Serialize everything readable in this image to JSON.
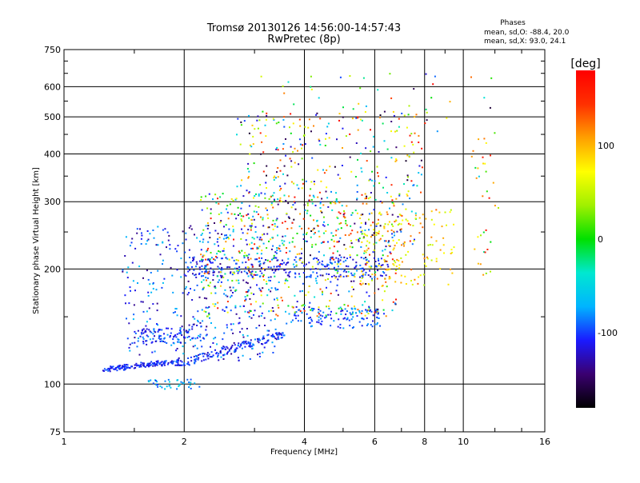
{
  "chart_data": {
    "type": "scatter",
    "title": "Tromsø 20130126 14:56:00-14:57:43",
    "subtitle": "RwPretec (8p)",
    "xlabel": "Frequency [MHz]",
    "ylabel": "Stationary phase Virtual Height [km]",
    "x_scale": "log",
    "y_scale": "log",
    "xlim": [
      1,
      16
    ],
    "ylim": [
      75,
      750
    ],
    "x_ticks": [
      1,
      2,
      4,
      6,
      8,
      10,
      16
    ],
    "y_ticks": [
      75,
      100,
      200,
      300,
      400,
      500,
      600,
      750
    ],
    "x_tick_labels": [
      "1",
      "2",
      "4",
      "6",
      "8",
      "10",
      "16"
    ],
    "y_tick_labels": [
      "75",
      "100",
      "200",
      "300",
      "400",
      "500",
      "600",
      "750"
    ],
    "grid": true,
    "stats": {
      "header": "Phases",
      "o_line": "mean, sd,O: -88.4, 20.0",
      "x_line": "mean, sd,X:  93.0, 24.1"
    },
    "colorbar": {
      "label": "[deg]",
      "range": [
        -180,
        180
      ],
      "ticks": [
        100,
        0,
        -100
      ],
      "tick_labels": [
        "100",
        "0",
        "-100"
      ],
      "colors": [
        "#000000",
        "#3a0070",
        "#1a1aff",
        "#00b4ff",
        "#00e8d0",
        "#00e000",
        "#a0f000",
        "#ffff00",
        "#ffa000",
        "#ff3000",
        "#ff0000"
      ]
    },
    "clusters": [
      {
        "name": "o-lower-trace",
        "x": [
          1.25,
          1.95
        ],
        "y": [
          108,
          118
        ],
        "phase": [
          -125,
          -90
        ],
        "n": 160,
        "slope": 0.6
      },
      {
        "name": "o-lower-trace-2",
        "x": [
          1.9,
          3.6
        ],
        "y": [
          112,
          136
        ],
        "phase": [
          -125,
          -80
        ],
        "n": 170,
        "slope": 1
      },
      {
        "name": "o-mid-trace",
        "x": [
          1.5,
          2.2
        ],
        "y": [
          128,
          140
        ],
        "phase": [
          -125,
          -80
        ],
        "n": 90,
        "slope": 0
      },
      {
        "name": "o-upper-trace",
        "x": [
          2.0,
          6.5
        ],
        "y": [
          190,
          215
        ],
        "phase": [
          -130,
          -80
        ],
        "n": 260,
        "slope": 0
      },
      {
        "name": "o-upper-low",
        "x": [
          3.6,
          6.2
        ],
        "y": [
          140,
          158
        ],
        "phase": [
          -120,
          -70
        ],
        "n": 120,
        "slope": 0
      },
      {
        "name": "diffuse-low",
        "x": [
          1.4,
          3.5
        ],
        "y": [
          115,
          260
        ],
        "phase": [
          -140,
          -60
        ],
        "n": 380,
        "slope": 0
      },
      {
        "name": "diffuse-mid",
        "x": [
          2.2,
          6.8
        ],
        "y": [
          150,
          320
        ],
        "phase": [
          -160,
          170
        ],
        "n": 600,
        "slope": 0
      },
      {
        "name": "diffuse-high",
        "x": [
          2.7,
          8.0
        ],
        "y": [
          230,
          520
        ],
        "phase": [
          -170,
          175
        ],
        "n": 380,
        "slope": 0
      },
      {
        "name": "x-trace",
        "x": [
          5.5,
          9.5
        ],
        "y": [
          180,
          290
        ],
        "phase": [
          40,
          130
        ],
        "n": 140,
        "slope": 0
      },
      {
        "name": "low-echo",
        "x": [
          1.6,
          2.2
        ],
        "y": [
          97,
          103
        ],
        "phase": [
          -110,
          -40
        ],
        "n": 40,
        "slope": 0
      },
      {
        "name": "sparse-top",
        "x": [
          3.0,
          12.0
        ],
        "y": [
          420,
          650
        ],
        "phase": [
          -170,
          175
        ],
        "n": 50,
        "slope": 0
      },
      {
        "name": "far-column",
        "x": [
          10.5,
          12.3
        ],
        "y": [
          190,
          460
        ],
        "phase": [
          -60,
          170
        ],
        "n": 35,
        "slope": 0
      }
    ]
  }
}
